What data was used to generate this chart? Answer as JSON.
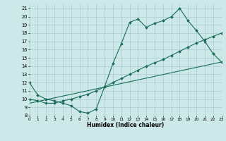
{
  "bg_color": "#cce8e8",
  "grid_color": "#aacccc",
  "line_color": "#1a6b5a",
  "line1_x": [
    0,
    1,
    2,
    3,
    4,
    5,
    6,
    7,
    8,
    9,
    10,
    11,
    12,
    13,
    14,
    15,
    16,
    17,
    18,
    19,
    20,
    21,
    22,
    23
  ],
  "line1_y": [
    12.0,
    10.5,
    10.0,
    9.8,
    9.5,
    9.2,
    8.5,
    8.3,
    8.8,
    11.5,
    14.3,
    16.7,
    19.3,
    19.7,
    18.7,
    19.2,
    19.5,
    20.0,
    21.0,
    19.5,
    18.3,
    17.0,
    15.5,
    14.5
  ],
  "line2_x": [
    0,
    1,
    2,
    3,
    4,
    5,
    6,
    7,
    8,
    9,
    10,
    11,
    12,
    13,
    14,
    15,
    16,
    17,
    18,
    19,
    20,
    21,
    22,
    23
  ],
  "line2_y": [
    10.0,
    9.8,
    9.5,
    9.5,
    9.8,
    10.0,
    10.3,
    10.6,
    11.0,
    11.5,
    12.0,
    12.5,
    13.0,
    13.5,
    14.0,
    14.4,
    14.8,
    15.3,
    15.8,
    16.3,
    16.8,
    17.2,
    17.6,
    18.0
  ],
  "line3_x": [
    0,
    23
  ],
  "line3_y": [
    9.5,
    14.5
  ],
  "xlim": [
    0,
    23
  ],
  "ylim": [
    8,
    21.5
  ],
  "yticks": [
    8,
    9,
    10,
    11,
    12,
    13,
    14,
    15,
    16,
    17,
    18,
    19,
    20,
    21
  ],
  "ytick_labels": [
    "8",
    "9",
    "10",
    "11",
    "12",
    "13",
    "14",
    "15",
    "16",
    "17",
    "18",
    "19",
    "20",
    "21"
  ],
  "xticks": [
    0,
    1,
    2,
    3,
    4,
    5,
    6,
    7,
    8,
    9,
    10,
    11,
    12,
    13,
    14,
    15,
    16,
    17,
    18,
    19,
    20,
    21,
    22,
    23
  ],
  "xtick_labels": [
    "0",
    "1",
    "2",
    "3",
    "4",
    "5",
    "6",
    "7",
    "8",
    "9",
    "10",
    "11",
    "12",
    "13",
    "14",
    "15",
    "16",
    "17",
    "18",
    "19",
    "20",
    "21",
    "22",
    "23"
  ],
  "xlabel": "Humidex (Indice chaleur)",
  "markersize": 2.0,
  "linewidth": 0.8
}
